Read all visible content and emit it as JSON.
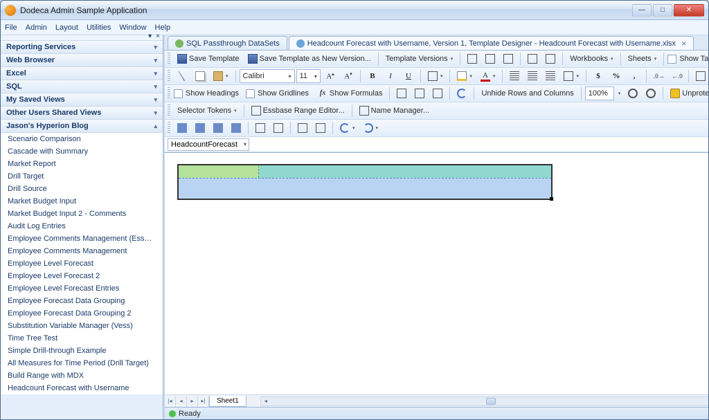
{
  "window": {
    "title": "Dodeca Admin Sample Application"
  },
  "menubar": [
    "File",
    "Admin",
    "Layout",
    "Utilities",
    "Window",
    "Help"
  ],
  "sidebar": {
    "sections": [
      {
        "label": "Reporting Services",
        "expanded": false
      },
      {
        "label": "Web Browser",
        "expanded": false
      },
      {
        "label": "Excel",
        "expanded": false
      },
      {
        "label": "SQL",
        "expanded": false
      },
      {
        "label": "My Saved Views",
        "expanded": false
      },
      {
        "label": "Other Users Shared Views",
        "expanded": false
      },
      {
        "label": "Jason's Hyperion Blog",
        "expanded": true,
        "items": [
          "Scenario Comparison",
          "Cascade with Summary",
          "Market Report",
          "Drill Target",
          "Drill Source",
          "Market Budget Input",
          "Market Budget Input 2 - Comments",
          "Audit Log Entries",
          "Employee Comments Management (Essbase V...",
          "Employee Comments Management",
          "Employee Level Forecast",
          "Employee Level Forecast 2",
          "Employee Level Forecast Entries",
          "Employee Forecast Data Grouping",
          "Employee Forecast Data Grouping 2",
          "Substitution Variable Manager (Vess)",
          "Time Tree Test",
          "Simple Drill-through Example",
          "All Measures for Time Period (Drill Target)",
          "Build Range with MDX",
          "Headcount Forecast with Username"
        ]
      }
    ]
  },
  "doctabs": [
    {
      "label": "SQL Passthrough DataSets",
      "active": false,
      "icon": "green"
    },
    {
      "label": "Headcount Forecast with Username, Version 1, Template Designer - Headcount Forecast with Username.xlsx",
      "active": true,
      "icon": "blue",
      "closable": true
    }
  ],
  "toolbar1": {
    "save": "Save Template",
    "saveAs": "Save Template as New Version...",
    "tplVersions": "Template Versions",
    "workbooks": "Workbooks",
    "sheets": "Sheets",
    "showTabs": "Show Tabs"
  },
  "toolbar2": {
    "font": "Calibri",
    "size": "11"
  },
  "toolbar3": {
    "showHeadings": "Show Headings",
    "showGridlines": "Show Gridlines",
    "showFormulas": "Show Formulas",
    "unhide": "Unhide Rows and Columns",
    "zoom": "100%",
    "unprotect": "Unprotect Sheet"
  },
  "toolbar4": {
    "selectorTokens": "Selector Tokens",
    "essbaseRange": "Essbase Range Editor...",
    "nameManager": "Name Manager..."
  },
  "namebox": "HeadcountForecast",
  "sheet": {
    "tabs": [
      "Sheet1"
    ],
    "sel_colors": {
      "c1": "#b4e29a",
      "c2": "#8fd7cf",
      "row2": "#b8d4f2"
    }
  },
  "status": "Ready"
}
